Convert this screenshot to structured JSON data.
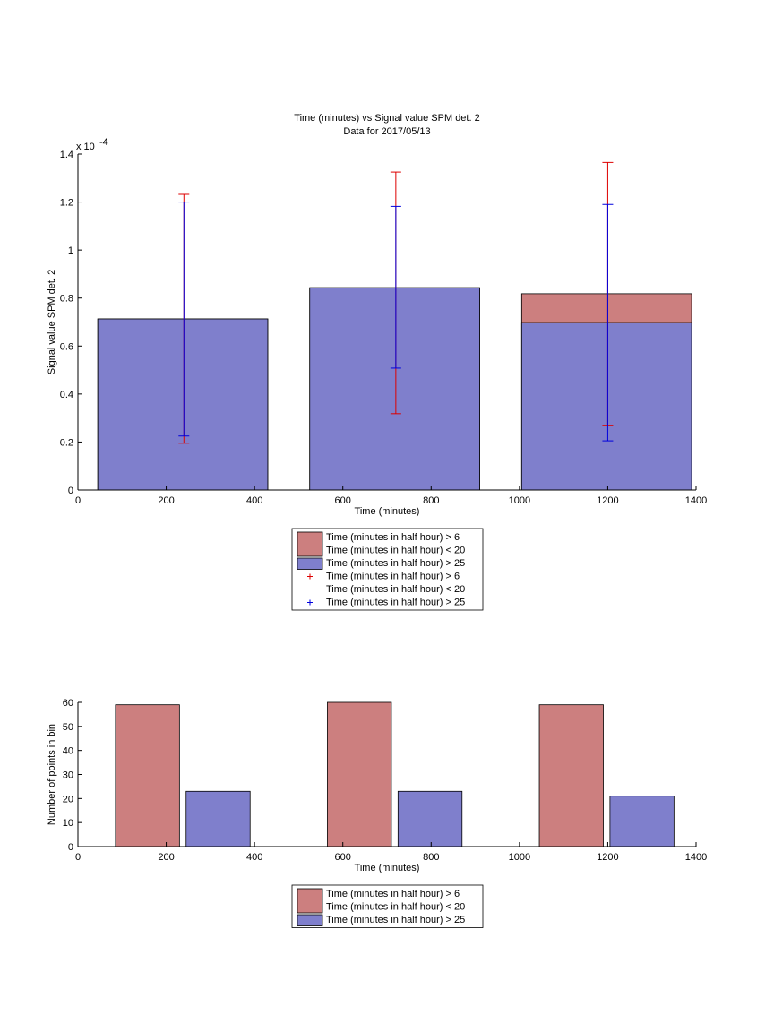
{
  "title_line1": "Time (minutes) vs Signal value SPM det. 2",
  "title_line2": "Data for 2017/05/13",
  "colors": {
    "red_bar": "#cc7f7f",
    "blue_bar": "#7f7fcc",
    "red_err": "#dd0000",
    "blue_err": "#0000dd"
  },
  "chart_data": [
    {
      "type": "bar",
      "title": "Time (minutes) vs Signal value SPM det. 2",
      "subtitle": "Data for 2017/05/13",
      "xlabel": "Time (minutes)",
      "ylabel": "Signal value SPM det. 2",
      "exponent_label": "x 10",
      "exponent_power": "-4",
      "xlim": [
        0,
        1400
      ],
      "ylim": [
        0,
        1.4
      ],
      "xticks": [
        "0",
        "200",
        "400",
        "600",
        "800",
        "1000",
        "1200",
        "1400"
      ],
      "yticks": [
        "0",
        "0.2",
        "0.4",
        "0.6",
        "0.8",
        "1",
        "1.2",
        "1.4"
      ],
      "bar_ranges": [
        [
          45,
          430
        ],
        [
          525,
          910
        ],
        [
          1005,
          1390
        ]
      ],
      "series": [
        {
          "name": "Time (minutes in half hour) > 6 Time (minutes in half hour) < 20",
          "values": [
            0.713,
            0.843,
            0.818
          ],
          "error_x": [
            240,
            720,
            1200
          ],
          "error_low": [
            0.195,
            0.318,
            0.27
          ],
          "error_high": [
            1.232,
            1.325,
            1.365
          ]
        },
        {
          "name": "Time (minutes in half hour) > 25",
          "values": [
            0.713,
            0.843,
            0.698
          ],
          "error_x": [
            240,
            720,
            1200
          ],
          "error_low": [
            0.225,
            0.508,
            0.205
          ],
          "error_high": [
            1.2,
            1.182,
            1.19
          ]
        }
      ],
      "legend": [
        {
          "kind": "patch",
          "color": "red",
          "line1": "Time (minutes in half hour) > 6",
          "line2": "Time (minutes in half hour) < 20"
        },
        {
          "kind": "patch",
          "color": "blue",
          "line1": "Time (minutes in half hour) > 25",
          "line2": ""
        },
        {
          "kind": "marker",
          "color": "red",
          "line1": "Time (minutes in half hour) > 6",
          "line2": "Time (minutes in half hour) < 20"
        },
        {
          "kind": "marker",
          "color": "blue",
          "line1": "Time (minutes in half hour) > 25",
          "line2": ""
        }
      ],
      "legend_placement": "below"
    },
    {
      "type": "bar",
      "xlabel": "Time (minutes)",
      "ylabel": "Number of points in bin",
      "xlim": [
        0,
        1400
      ],
      "ylim": [
        0,
        60
      ],
      "xticks": [
        "0",
        "200",
        "400",
        "600",
        "800",
        "1000",
        "1200",
        "1400"
      ],
      "yticks": [
        "0",
        "10",
        "20",
        "30",
        "40",
        "50",
        "60"
      ],
      "series": [
        {
          "name": "Time (minutes in half hour) > 6 Time (minutes in half hour) < 20",
          "bar_ranges": [
            [
              85,
              230
            ],
            [
              565,
              710
            ],
            [
              1045,
              1190
            ]
          ],
          "values": [
            59,
            60,
            59
          ]
        },
        {
          "name": "Time (minutes in half hour) > 25",
          "bar_ranges": [
            [
              245,
              390
            ],
            [
              725,
              870
            ],
            [
              1205,
              1350
            ]
          ],
          "values": [
            23,
            23,
            21
          ]
        }
      ],
      "legend": [
        {
          "kind": "patch",
          "color": "red",
          "line1": "Time (minutes in half hour) > 6",
          "line2": "Time (minutes in half hour) < 20"
        },
        {
          "kind": "patch",
          "color": "blue",
          "line1": "Time (minutes in half hour) > 25",
          "line2": ""
        }
      ],
      "legend_placement": "below"
    }
  ]
}
